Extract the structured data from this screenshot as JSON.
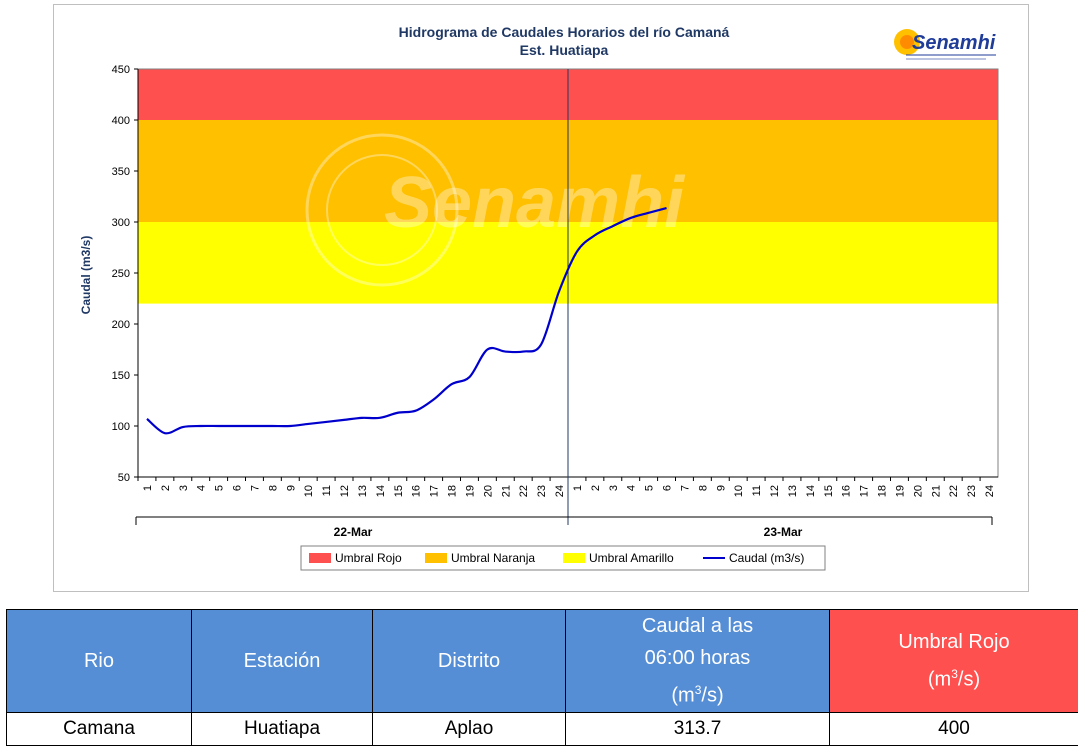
{
  "chart_data": {
    "type": "line",
    "title": "Hidrograma de Caudales Horarios del río Camaná",
    "subtitle": "Est. Huatiapa",
    "ylabel": "Caudal  (m3/s)",
    "ylim": [
      50,
      450
    ],
    "yticks": [
      50,
      100,
      150,
      200,
      250,
      300,
      350,
      400,
      450
    ],
    "x_ticks_day1": [
      "1",
      "2",
      "3",
      "4",
      "5",
      "6",
      "7",
      "8",
      "9",
      "10",
      "11",
      "12",
      "13",
      "14",
      "15",
      "16",
      "17",
      "18",
      "19",
      "20",
      "21",
      "22",
      "23",
      "24"
    ],
    "x_ticks_day2": [
      "1",
      "2",
      "3",
      "4",
      "5",
      "6",
      "7",
      "8",
      "9",
      "10",
      "11",
      "12",
      "13",
      "14",
      "15",
      "16",
      "17",
      "18",
      "19",
      "20",
      "21",
      "22",
      "23",
      "24"
    ],
    "dates": [
      "22-Mar",
      "23-Mar"
    ],
    "thresholds": [
      {
        "name": "Umbral Rojo",
        "from": 400,
        "to": 450,
        "color": "#ff5050"
      },
      {
        "name": "Umbral Naranja",
        "from": 300,
        "to": 400,
        "color": "#ffc000"
      },
      {
        "name": "Umbral Amarillo",
        "from": 220,
        "to": 300,
        "color": "#ffff00"
      }
    ],
    "series": [
      {
        "name": "Caudal (m3/s)",
        "color": "#0000cc",
        "x": [
          1,
          2,
          3,
          4,
          5,
          6,
          7,
          8,
          9,
          10,
          11,
          12,
          13,
          14,
          15,
          16,
          17,
          18,
          19,
          20,
          21,
          22,
          23,
          24,
          25,
          26,
          27,
          28,
          29,
          30
        ],
        "values": [
          107,
          93,
          99,
          100,
          100,
          100,
          100,
          100,
          100,
          102,
          104,
          106,
          108,
          108,
          113,
          115,
          126,
          141,
          148,
          175,
          173,
          173,
          180,
          232,
          271,
          287,
          296,
          304,
          309,
          313.7
        ]
      }
    ],
    "legend": [
      "Umbral Rojo",
      "Umbral Naranja",
      "Umbral Amarillo",
      "Caudal (m3/s)"
    ],
    "legend_position": "bottom",
    "grid": false
  },
  "logo": {
    "text": "Senamhi",
    "watermark": "Senamhi"
  },
  "table": {
    "headers": {
      "rio": "Rio",
      "estacion": "Estación",
      "distrito": "Distrito",
      "caudal_line1": "Caudal a las",
      "caudal_line2": "06:00 horas",
      "caudal_unit": "(m",
      "caudal_unit_sup": "3",
      "caudal_unit_end": "/s)",
      "umbral_line1": "Umbral Rojo",
      "umbral_unit": "(m",
      "umbral_unit_sup": "3",
      "umbral_unit_end": "/s)"
    },
    "row": {
      "rio": "Camana",
      "estacion": "Huatiapa",
      "distrito": "Aplao",
      "caudal": "313.7",
      "umbral": "400"
    }
  },
  "colors": {
    "header_blue": "#558ed5",
    "header_red": "#ff5050",
    "line": "#0000cc",
    "title": "#1f3864"
  }
}
